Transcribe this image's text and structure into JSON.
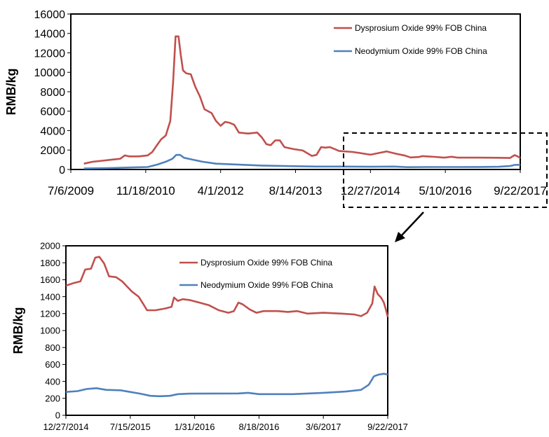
{
  "colors": {
    "dysprosium": "#c0504d",
    "neodymium": "#4f81bd",
    "frame": "#000000"
  },
  "chart_data": [
    {
      "type": "line",
      "title": "",
      "xlabel": "",
      "ylabel": "RMB/kg",
      "ylim": [
        0,
        16000
      ],
      "yticks": [
        0,
        2000,
        4000,
        6000,
        8000,
        10000,
        12000,
        14000,
        16000
      ],
      "ytick_labels": [
        "0",
        "2000",
        "4000",
        "6000",
        "8000",
        "10000",
        "12000",
        "14000",
        "16000"
      ],
      "xlim": [
        "2009-07-06",
        "2017-09-22"
      ],
      "xticks": [
        "2009-07-06",
        "2010-11-18",
        "2012-04-01",
        "2013-08-14",
        "2014-12-27",
        "2016-05-10",
        "2017-09-22"
      ],
      "xtick_labels": [
        "7/6/2009",
        "11/18/2010",
        "4/1/2012",
        "8/14/2013",
        "12/27/2014",
        "5/10/2016",
        "9/22/2017"
      ],
      "grid": false,
      "legend": "top-right",
      "series": [
        {
          "name": "Dysprosium Oxide 99% FOB China",
          "color": "#c0504d",
          "points": [
            [
              "2009-10-01",
              600
            ],
            [
              "2009-12-01",
              800
            ],
            [
              "2010-02-01",
              900
            ],
            [
              "2010-04-01",
              1000
            ],
            [
              "2010-06-01",
              1100
            ],
            [
              "2010-07-01",
              1450
            ],
            [
              "2010-08-01",
              1350
            ],
            [
              "2010-10-01",
              1350
            ],
            [
              "2010-12-01",
              1450
            ],
            [
              "2011-01-01",
              1800
            ],
            [
              "2011-02-01",
              2500
            ],
            [
              "2011-03-01",
              3100
            ],
            [
              "2011-04-01",
              3500
            ],
            [
              "2011-05-01",
              5000
            ],
            [
              "2011-05-20",
              9000
            ],
            [
              "2011-06-05",
              13700
            ],
            [
              "2011-06-25",
              13700
            ],
            [
              "2011-07-10",
              11800
            ],
            [
              "2011-07-25",
              10200
            ],
            [
              "2011-08-15",
              9900
            ],
            [
              "2011-09-15",
              9800
            ],
            [
              "2011-10-15",
              8500
            ],
            [
              "2011-11-15",
              7500
            ],
            [
              "2011-12-15",
              6200
            ],
            [
              "2012-02-01",
              5800
            ],
            [
              "2012-03-01",
              5000
            ],
            [
              "2012-04-01",
              4500
            ],
            [
              "2012-05-01",
              4900
            ],
            [
              "2012-06-01",
              4800
            ],
            [
              "2012-07-01",
              4600
            ],
            [
              "2012-08-01",
              3800
            ],
            [
              "2012-10-01",
              3700
            ],
            [
              "2012-12-01",
              3800
            ],
            [
              "2013-01-01",
              3300
            ],
            [
              "2013-02-01",
              2600
            ],
            [
              "2013-03-01",
              2500
            ],
            [
              "2013-04-01",
              3000
            ],
            [
              "2013-05-01",
              3000
            ],
            [
              "2013-06-01",
              2300
            ],
            [
              "2013-08-01",
              2100
            ],
            [
              "2013-10-01",
              1950
            ],
            [
              "2013-12-01",
              1400
            ],
            [
              "2014-01-01",
              1500
            ],
            [
              "2014-02-01",
              2300
            ],
            [
              "2014-03-01",
              2250
            ],
            [
              "2014-04-01",
              2300
            ],
            [
              "2014-06-01",
              1900
            ],
            [
              "2014-09-01",
              1800
            ],
            [
              "2014-12-27",
              1520
            ],
            [
              "2015-03-01",
              1720
            ],
            [
              "2015-04-15",
              1860
            ],
            [
              "2015-06-15",
              1620
            ],
            [
              "2015-08-15",
              1430
            ],
            [
              "2015-09-20",
              1240
            ],
            [
              "2015-11-15",
              1280
            ],
            [
              "2015-12-10",
              1380
            ],
            [
              "2016-01-15",
              1340
            ],
            [
              "2016-03-01",
              1300
            ],
            [
              "2016-05-01",
              1220
            ],
            [
              "2016-06-20",
              1310
            ],
            [
              "2016-08-01",
              1220
            ],
            [
              "2016-12-01",
              1220
            ],
            [
              "2017-03-01",
              1210
            ],
            [
              "2017-05-01",
              1200
            ],
            [
              "2017-07-15",
              1180
            ],
            [
              "2017-08-15",
              1480
            ],
            [
              "2017-09-01",
              1380
            ],
            [
              "2017-09-22",
              1180
            ]
          ]
        },
        {
          "name": "Neodymium Oxide 99% FOB China",
          "color": "#4f81bd",
          "points": [
            [
              "2009-10-01",
              100
            ],
            [
              "2010-01-01",
              120
            ],
            [
              "2010-04-01",
              150
            ],
            [
              "2010-08-01",
              200
            ],
            [
              "2010-12-01",
              250
            ],
            [
              "2011-02-01",
              500
            ],
            [
              "2011-04-01",
              800
            ],
            [
              "2011-05-15",
              1100
            ],
            [
              "2011-06-10",
              1500
            ],
            [
              "2011-07-05",
              1500
            ],
            [
              "2011-08-01",
              1200
            ],
            [
              "2011-10-01",
              1000
            ],
            [
              "2011-12-01",
              800
            ],
            [
              "2012-03-01",
              600
            ],
            [
              "2012-08-01",
              500
            ],
            [
              "2013-01-01",
              400
            ],
            [
              "2013-06-01",
              350
            ],
            [
              "2014-01-01",
              300
            ],
            [
              "2014-06-01",
              300
            ],
            [
              "2014-12-27",
              280
            ],
            [
              "2015-06-01",
              300
            ],
            [
              "2015-09-01",
              240
            ],
            [
              "2016-01-01",
              250
            ],
            [
              "2016-07-01",
              250
            ],
            [
              "2017-01-01",
              260
            ],
            [
              "2017-05-01",
              280
            ],
            [
              "2017-07-15",
              350
            ],
            [
              "2017-08-15",
              470
            ],
            [
              "2017-09-22",
              480
            ]
          ]
        }
      ]
    },
    {
      "type": "line",
      "title": "",
      "xlabel": "",
      "ylabel": "RMB/kg",
      "ylim": [
        0,
        2000
      ],
      "yticks": [
        0,
        200,
        400,
        600,
        800,
        1000,
        1200,
        1400,
        1600,
        1800,
        2000
      ],
      "ytick_labels": [
        "0",
        "200",
        "400",
        "600",
        "800",
        "1000",
        "1200",
        "1400",
        "1600",
        "1800",
        "2000"
      ],
      "xlim": [
        "2014-12-27",
        "2017-09-22"
      ],
      "xticks": [
        "2014-12-27",
        "2015-07-15",
        "2016-01-31",
        "2016-08-18",
        "2017-03-06",
        "2017-09-22"
      ],
      "xtick_labels": [
        "12/27/2014",
        "7/15/2015",
        "1/31/2016",
        "8/18/2016",
        "3/6/2017",
        "9/22/2017"
      ],
      "grid": false,
      "legend": "top",
      "series": [
        {
          "name": "Dysprosium Oxide 99% FOB China",
          "color": "#c0504d",
          "points": [
            [
              "2014-12-27",
              1530
            ],
            [
              "2015-01-20",
              1560
            ],
            [
              "2015-02-10",
              1580
            ],
            [
              "2015-02-25",
              1720
            ],
            [
              "2015-03-15",
              1730
            ],
            [
              "2015-03-28",
              1860
            ],
            [
              "2015-04-10",
              1870
            ],
            [
              "2015-04-25",
              1790
            ],
            [
              "2015-05-10",
              1640
            ],
            [
              "2015-06-01",
              1630
            ],
            [
              "2015-06-20",
              1580
            ],
            [
              "2015-07-05",
              1520
            ],
            [
              "2015-07-20",
              1460
            ],
            [
              "2015-08-10",
              1400
            ],
            [
              "2015-08-25",
              1310
            ],
            [
              "2015-09-05",
              1240
            ],
            [
              "2015-10-01",
              1240
            ],
            [
              "2015-11-01",
              1260
            ],
            [
              "2015-11-20",
              1280
            ],
            [
              "2015-11-28",
              1390
            ],
            [
              "2015-12-10",
              1350
            ],
            [
              "2015-12-25",
              1370
            ],
            [
              "2016-01-15",
              1360
            ],
            [
              "2016-02-15",
              1330
            ],
            [
              "2016-03-15",
              1300
            ],
            [
              "2016-04-15",
              1240
            ],
            [
              "2016-05-15",
              1210
            ],
            [
              "2016-06-01",
              1230
            ],
            [
              "2016-06-15",
              1330
            ],
            [
              "2016-06-28",
              1310
            ],
            [
              "2016-07-20",
              1250
            ],
            [
              "2016-08-10",
              1210
            ],
            [
              "2016-09-01",
              1230
            ],
            [
              "2016-10-15",
              1230
            ],
            [
              "2016-11-15",
              1220
            ],
            [
              "2016-12-15",
              1230
            ],
            [
              "2017-01-15",
              1200
            ],
            [
              "2017-03-06",
              1210
            ],
            [
              "2017-05-01",
              1200
            ],
            [
              "2017-06-10",
              1190
            ],
            [
              "2017-07-01",
              1170
            ],
            [
              "2017-07-20",
              1210
            ],
            [
              "2017-08-05",
              1320
            ],
            [
              "2017-08-12",
              1520
            ],
            [
              "2017-08-22",
              1430
            ],
            [
              "2017-09-01",
              1390
            ],
            [
              "2017-09-10",
              1330
            ],
            [
              "2017-09-17",
              1240
            ],
            [
              "2017-09-22",
              1160
            ]
          ]
        },
        {
          "name": "Neodymium Oxide 99% FOB China",
          "color": "#4f81bd",
          "points": [
            [
              "2014-12-27",
              275
            ],
            [
              "2015-02-01",
              285
            ],
            [
              "2015-03-01",
              310
            ],
            [
              "2015-04-01",
              320
            ],
            [
              "2015-05-01",
              300
            ],
            [
              "2015-06-15",
              295
            ],
            [
              "2015-07-15",
              275
            ],
            [
              "2015-08-15",
              255
            ],
            [
              "2015-09-15",
              230
            ],
            [
              "2015-10-15",
              225
            ],
            [
              "2015-11-15",
              230
            ],
            [
              "2015-12-10",
              250
            ],
            [
              "2016-01-15",
              255
            ],
            [
              "2016-06-15",
              258
            ],
            [
              "2016-07-15",
              265
            ],
            [
              "2016-08-18",
              250
            ],
            [
              "2016-12-01",
              250
            ],
            [
              "2017-03-06",
              265
            ],
            [
              "2017-05-15",
              280
            ],
            [
              "2017-07-01",
              300
            ],
            [
              "2017-07-25",
              360
            ],
            [
              "2017-08-10",
              460
            ],
            [
              "2017-08-25",
              480
            ],
            [
              "2017-09-10",
              490
            ],
            [
              "2017-09-22",
              480
            ]
          ]
        }
      ]
    }
  ]
}
